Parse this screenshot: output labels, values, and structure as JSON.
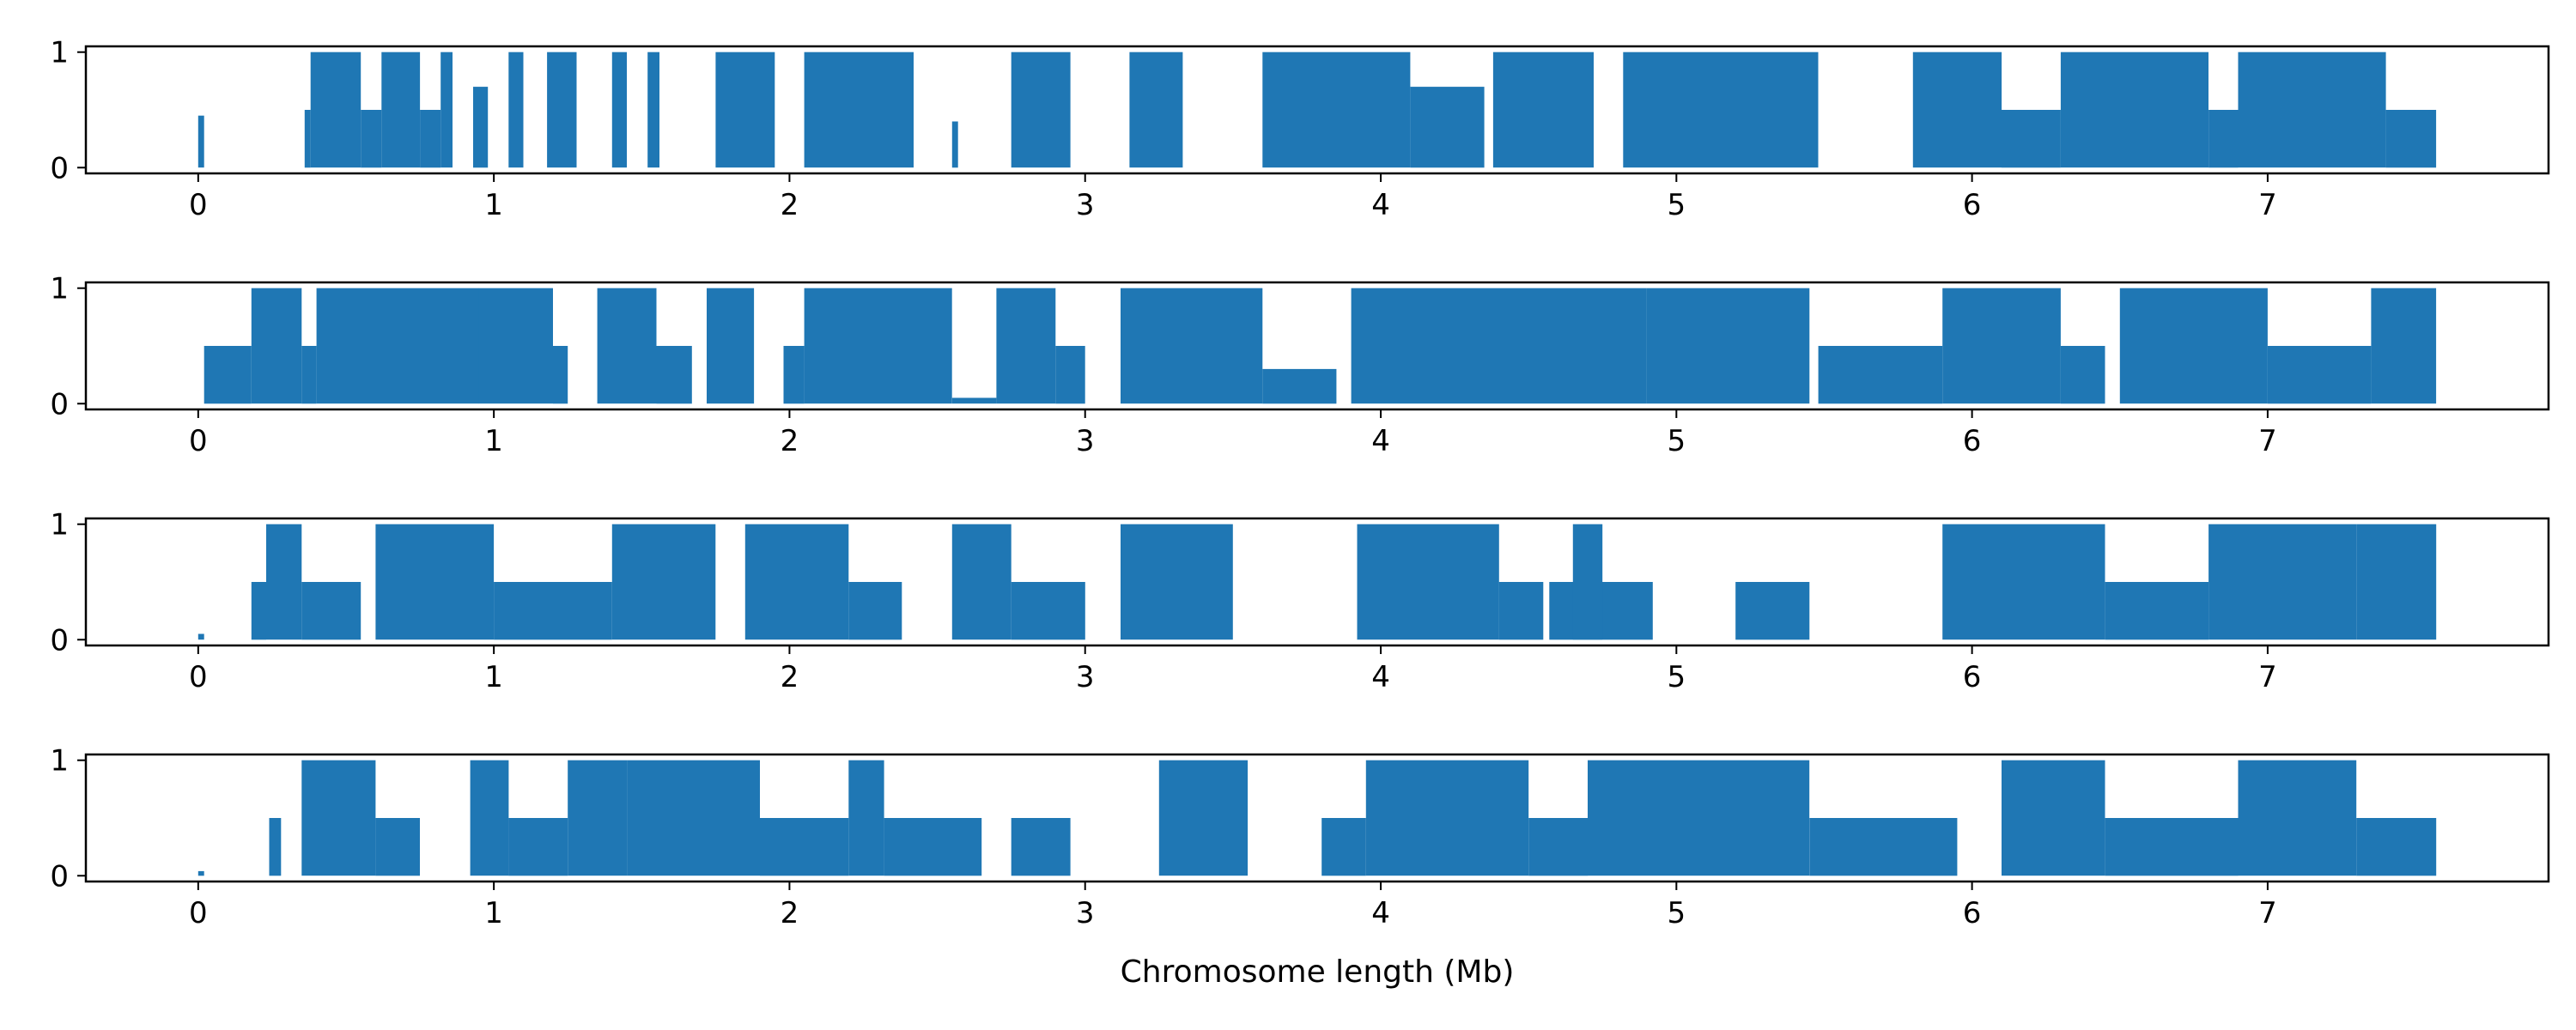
{
  "chart_data": {
    "type": "area",
    "xlabel": "Chromosome length (Mb)",
    "ylabel": "",
    "title": "",
    "xlim": [
      -0.38,
      7.95
    ],
    "ylim": [
      -0.05,
      1.05
    ],
    "x_ticks": [
      "0",
      "1",
      "2",
      "3",
      "4",
      "5",
      "6",
      "7"
    ],
    "y_ticks": [
      "0",
      "1"
    ],
    "grid": false,
    "fill_color": "#1f77b4",
    "panels": [
      {
        "segments": [
          [
            0.0,
            0.02,
            0.45
          ],
          [
            0.36,
            0.38,
            0.5
          ],
          [
            0.38,
            0.55,
            1.0
          ],
          [
            0.55,
            0.62,
            0.5
          ],
          [
            0.62,
            0.75,
            1.0
          ],
          [
            0.75,
            0.82,
            0.5
          ],
          [
            0.82,
            0.86,
            1.0
          ],
          [
            0.93,
            0.98,
            0.7
          ],
          [
            1.05,
            1.1,
            1.0
          ],
          [
            1.18,
            1.28,
            1.0
          ],
          [
            1.4,
            1.45,
            1.0
          ],
          [
            1.52,
            1.56,
            1.0
          ],
          [
            1.75,
            1.95,
            1.0
          ],
          [
            2.05,
            2.42,
            1.0
          ],
          [
            2.55,
            2.57,
            0.4
          ],
          [
            2.75,
            2.95,
            1.0
          ],
          [
            3.15,
            3.33,
            1.0
          ],
          [
            3.6,
            4.1,
            1.0
          ],
          [
            4.1,
            4.35,
            0.7
          ],
          [
            4.38,
            4.72,
            1.0
          ],
          [
            4.82,
            5.48,
            1.0
          ],
          [
            5.8,
            6.1,
            1.0
          ],
          [
            6.1,
            6.3,
            0.5
          ],
          [
            6.3,
            6.8,
            1.0
          ],
          [
            6.8,
            6.9,
            0.5
          ],
          [
            6.9,
            7.4,
            1.0
          ],
          [
            7.4,
            7.57,
            0.5
          ]
        ]
      },
      {
        "segments": [
          [
            0.02,
            0.18,
            0.5
          ],
          [
            0.18,
            0.35,
            1.0
          ],
          [
            0.35,
            0.4,
            0.5
          ],
          [
            0.4,
            0.95,
            1.0
          ],
          [
            0.95,
            1.2,
            1.0
          ],
          [
            1.2,
            1.25,
            0.5
          ],
          [
            1.35,
            1.55,
            1.0
          ],
          [
            1.55,
            1.67,
            0.5
          ],
          [
            1.72,
            1.88,
            1.0
          ],
          [
            1.98,
            2.05,
            0.5
          ],
          [
            2.05,
            2.55,
            1.0
          ],
          [
            2.55,
            2.7,
            0.05
          ],
          [
            2.7,
            2.9,
            1.0
          ],
          [
            2.9,
            3.0,
            0.5
          ],
          [
            3.12,
            3.6,
            1.0
          ],
          [
            3.6,
            3.85,
            0.3
          ],
          [
            3.9,
            4.9,
            1.0
          ],
          [
            4.9,
            5.45,
            1.0
          ],
          [
            5.48,
            5.9,
            0.5
          ],
          [
            5.9,
            6.3,
            1.0
          ],
          [
            6.3,
            6.45,
            0.5
          ],
          [
            6.5,
            7.0,
            1.0
          ],
          [
            7.0,
            7.35,
            0.5
          ],
          [
            7.35,
            7.57,
            1.0
          ]
        ]
      },
      {
        "segments": [
          [
            0.0,
            0.02,
            0.05
          ],
          [
            0.18,
            0.23,
            0.5
          ],
          [
            0.23,
            0.35,
            1.0
          ],
          [
            0.35,
            0.55,
            0.5
          ],
          [
            0.6,
            1.0,
            1.0
          ],
          [
            1.0,
            1.4,
            0.5
          ],
          [
            1.4,
            1.75,
            1.0
          ],
          [
            1.85,
            2.2,
            1.0
          ],
          [
            2.2,
            2.38,
            0.5
          ],
          [
            2.55,
            2.75,
            1.0
          ],
          [
            2.75,
            3.0,
            0.5
          ],
          [
            3.12,
            3.5,
            1.0
          ],
          [
            3.92,
            4.4,
            1.0
          ],
          [
            4.4,
            4.55,
            0.5
          ],
          [
            4.57,
            4.92,
            0.5
          ],
          [
            4.65,
            4.75,
            1.0
          ],
          [
            5.2,
            5.45,
            0.5
          ],
          [
            5.9,
            6.1,
            1.0
          ],
          [
            6.1,
            6.45,
            1.0
          ],
          [
            6.45,
            6.8,
            0.5
          ],
          [
            6.8,
            7.3,
            1.0
          ],
          [
            7.3,
            7.57,
            1.0
          ]
        ]
      },
      {
        "segments": [
          [
            0.0,
            0.02,
            0.04
          ],
          [
            0.24,
            0.28,
            0.5
          ],
          [
            0.35,
            0.6,
            1.0
          ],
          [
            0.6,
            0.75,
            0.5
          ],
          [
            0.92,
            1.05,
            1.0
          ],
          [
            1.05,
            1.25,
            0.5
          ],
          [
            1.25,
            1.45,
            1.0
          ],
          [
            1.45,
            1.9,
            1.0
          ],
          [
            1.9,
            2.2,
            0.5
          ],
          [
            2.2,
            2.32,
            1.0
          ],
          [
            2.32,
            2.65,
            0.5
          ],
          [
            2.75,
            2.95,
            0.5
          ],
          [
            3.25,
            3.55,
            1.0
          ],
          [
            3.8,
            3.95,
            0.5
          ],
          [
            3.95,
            4.5,
            1.0
          ],
          [
            4.5,
            4.7,
            0.5
          ],
          [
            4.7,
            5.45,
            1.0
          ],
          [
            5.45,
            5.95,
            0.5
          ],
          [
            6.1,
            6.45,
            1.0
          ],
          [
            6.45,
            6.9,
            0.5
          ],
          [
            6.9,
            7.3,
            1.0
          ],
          [
            7.3,
            7.57,
            0.5
          ]
        ]
      }
    ]
  }
}
